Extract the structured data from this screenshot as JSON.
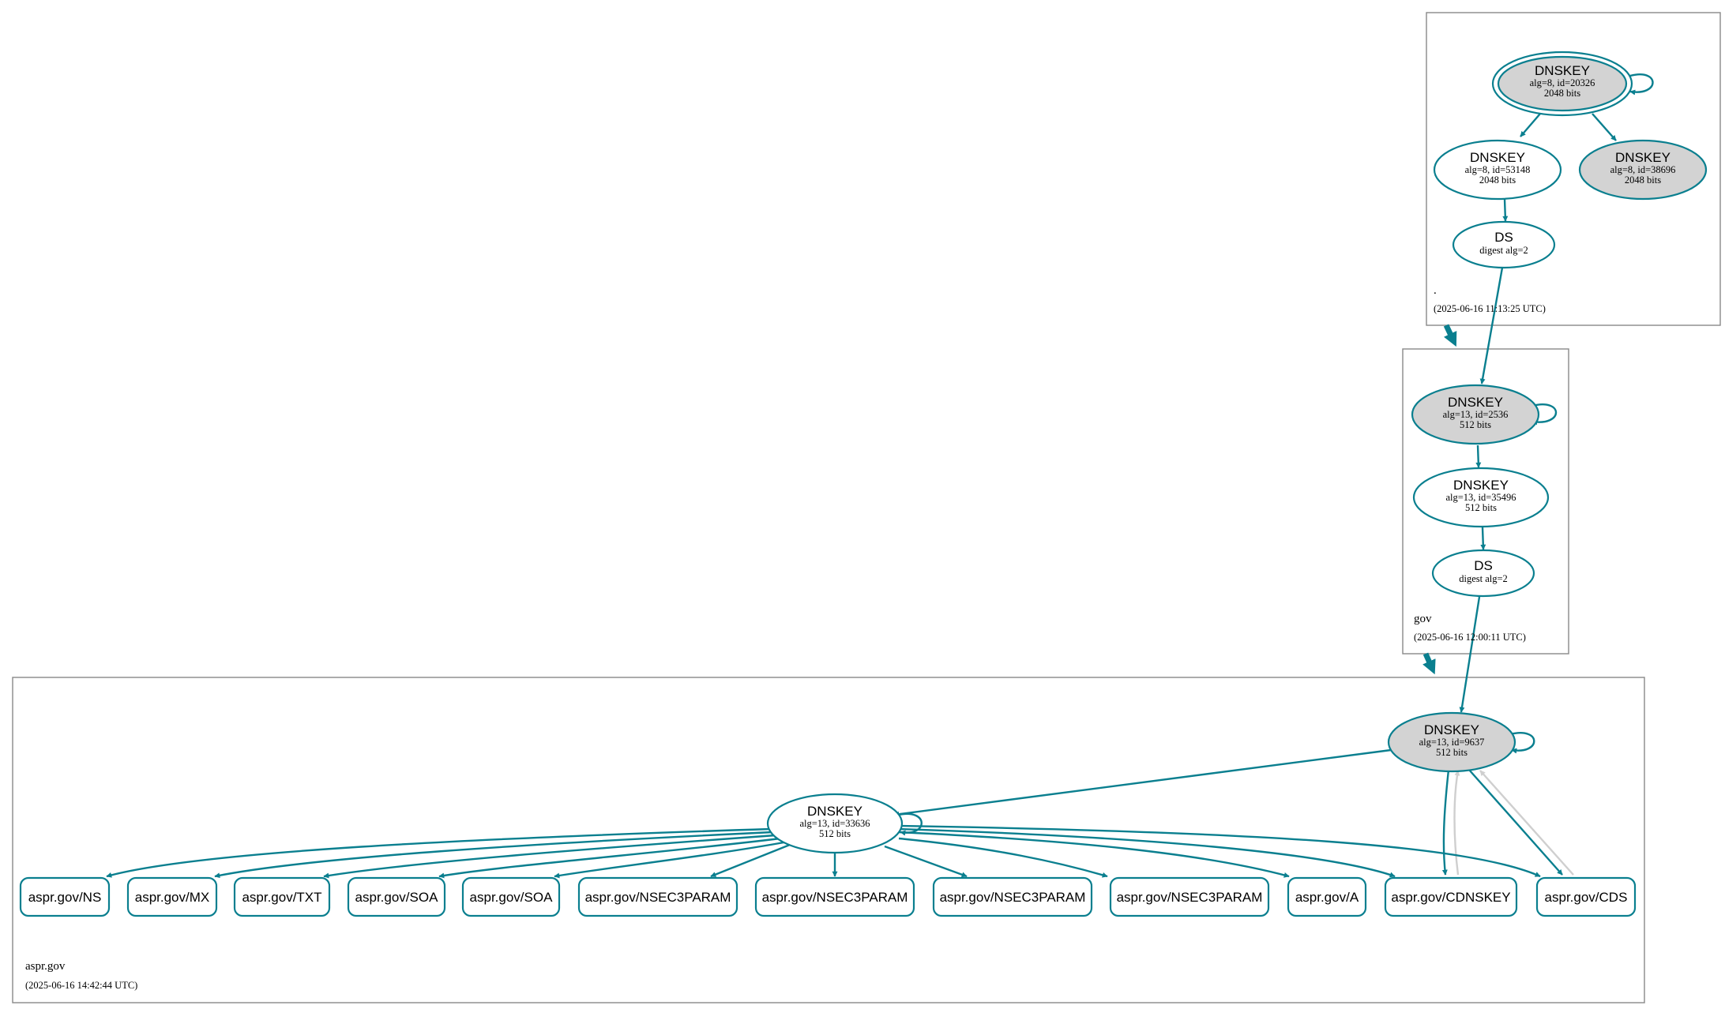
{
  "zones": {
    "root": {
      "name": ".",
      "timestamp": "(2025-06-16 11:13:25 UTC)",
      "ksk": {
        "type": "DNSKEY",
        "detail": "alg=8, id=20326",
        "bits": "2048 bits"
      },
      "zsk": {
        "type": "DNSKEY",
        "detail": "alg=8, id=53148",
        "bits": "2048 bits"
      },
      "standby": {
        "type": "DNSKEY",
        "detail": "alg=8, id=38696",
        "bits": "2048 bits"
      },
      "ds": {
        "type": "DS",
        "detail": "digest alg=2"
      }
    },
    "gov": {
      "name": "gov",
      "timestamp": "(2025-06-16 12:00:11 UTC)",
      "ksk": {
        "type": "DNSKEY",
        "detail": "alg=13, id=2536",
        "bits": "512 bits"
      },
      "zsk": {
        "type": "DNSKEY",
        "detail": "alg=13, id=35496",
        "bits": "512 bits"
      },
      "ds": {
        "type": "DS",
        "detail": "digest alg=2"
      }
    },
    "aspr": {
      "name": "aspr.gov",
      "timestamp": "(2025-06-16 14:42:44 UTC)",
      "ksk": {
        "type": "DNSKEY",
        "detail": "alg=13, id=9637",
        "bits": "512 bits"
      },
      "zsk": {
        "type": "DNSKEY",
        "detail": "alg=13, id=33636",
        "bits": "512 bits"
      },
      "rrsets": [
        "aspr.gov/NS",
        "aspr.gov/MX",
        "aspr.gov/TXT",
        "aspr.gov/SOA",
        "aspr.gov/SOA",
        "aspr.gov/NSEC3PARAM",
        "aspr.gov/NSEC3PARAM",
        "aspr.gov/NSEC3PARAM",
        "aspr.gov/NSEC3PARAM",
        "aspr.gov/A",
        "aspr.gov/CDNSKEY",
        "aspr.gov/CDS"
      ]
    }
  },
  "colors": {
    "edge": "#0a7f8f",
    "ksk_fill": "#d3d3d3",
    "zsk_fill": "#ffffff",
    "grey_edge": "#cfcfcf",
    "zone_border": "#888888"
  }
}
